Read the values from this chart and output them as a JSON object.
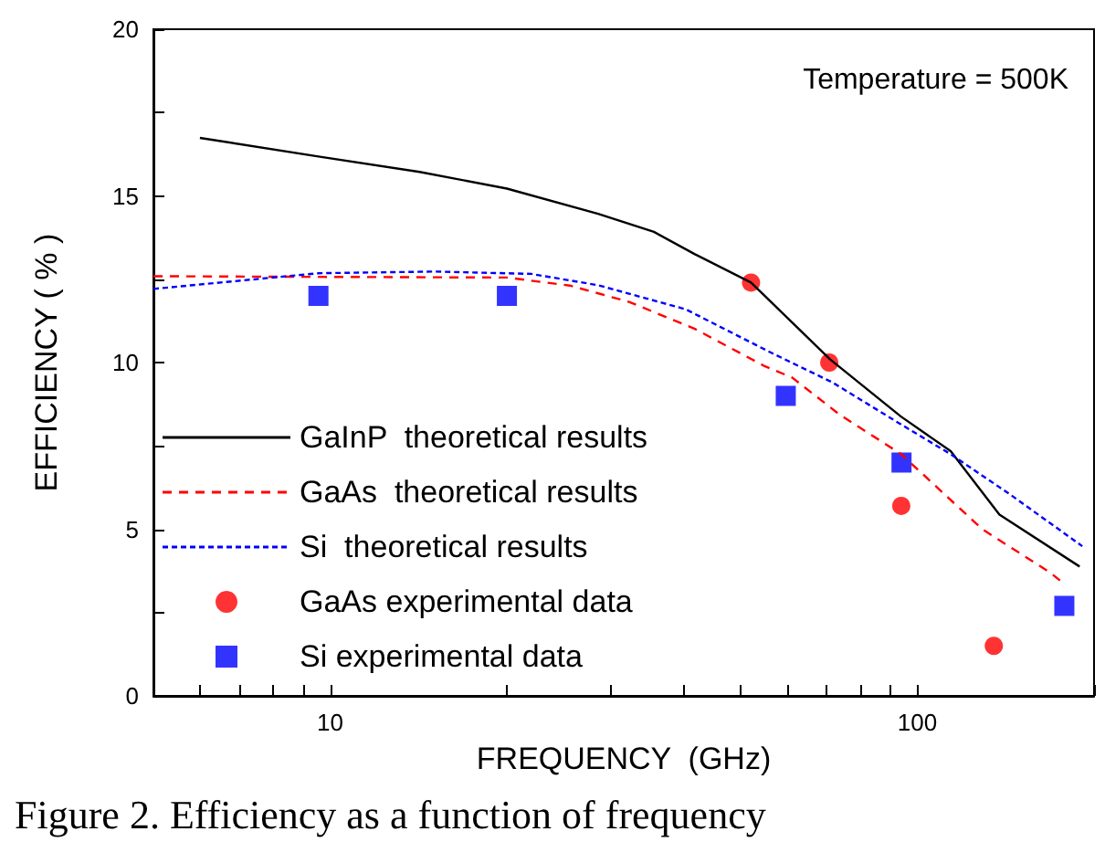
{
  "chart_data": {
    "type": "line",
    "xlabel": "FREQUENCY  (GHz)",
    "ylabel": "EFFICIENCY ( % )",
    "log": "x",
    "xlim": [
      5,
      200
    ],
    "xticks": [
      {
        "value": 6,
        "label": null
      },
      {
        "value": 7,
        "label": null
      },
      {
        "value": 8,
        "label": null
      },
      {
        "value": 9,
        "label": null
      },
      10,
      {
        "value": 20,
        "label": null
      },
      {
        "value": 30,
        "label": null
      },
      {
        "value": 40,
        "label": null
      },
      {
        "value": 50,
        "label": null
      },
      {
        "value": 60,
        "label": null
      },
      {
        "value": 70,
        "label": null
      },
      {
        "value": 80,
        "label": null
      },
      {
        "value": 90,
        "label": null
      },
      100,
      {
        "value": 200,
        "label": null
      }
    ],
    "ylim": [
      0,
      20
    ],
    "yticks": [
      0,
      {
        "value": 2.5,
        "label": null
      },
      5,
      {
        "value": 7.5,
        "label": null
      },
      10,
      {
        "value": 12.5,
        "label": null
      },
      15,
      {
        "value": 17.5,
        "label": null
      },
      20
    ],
    "grid": false,
    "legend": "bottom left",
    "annotations": [
      "Temperature = 500K",
      "Figure 2. Efficiency as a function of frequency"
    ],
    "series": [
      {
        "name": "GaInP  theoretical results",
        "color": "#000000",
        "line_style": "solid",
        "marker": "none",
        "x": [
          6,
          9.55,
          14.2,
          20,
          28.6,
          35.6,
          41.8,
          52.1,
          71,
          93.8,
          114,
          138,
          189
        ],
        "values": [
          16.74,
          16.18,
          15.72,
          15.22,
          14.46,
          13.92,
          13.25,
          12.4,
          10.1,
          8.38,
          7.34,
          5.44,
          3.88
        ]
      },
      {
        "name": "GaAs  theoretical results",
        "color": "#ff0000",
        "line_style": "dashed",
        "marker": "none",
        "x": [
          5,
          20,
          25.6,
          32.3,
          41.8,
          54.7,
          61.2,
          73.6,
          93.9,
          129,
          168,
          178
        ],
        "values": [
          12.59,
          12.55,
          12.31,
          11.82,
          11.01,
          9.91,
          9.55,
          8.45,
          7.25,
          5.0,
          3.71,
          3.36
        ]
      },
      {
        "name": "Si  theoretical results",
        "color": "#0000ff",
        "line_style": "dotted",
        "marker": "none",
        "x": [
          5,
          9.55,
          15.1,
          22,
          28.6,
          40.3,
          56.6,
          71.6,
          92.7,
          114,
          144,
          191
        ],
        "values": [
          12.21,
          12.68,
          12.73,
          12.66,
          12.32,
          11.6,
          10.28,
          9.41,
          8.2,
          7.25,
          6.04,
          4.49
        ]
      },
      {
        "name": "GaAs experimental data",
        "type": "scatter",
        "color": "#ff0000",
        "marker": "circle",
        "x": [
          52.1,
          70.8,
          93.9,
          135
        ],
        "values": [
          12.4,
          10.0,
          5.7,
          1.5
        ]
      },
      {
        "name": "Si experimental data",
        "type": "scatter",
        "color": "#0000ff",
        "marker": "square",
        "x": [
          9.55,
          20,
          59.7,
          94,
          178
        ],
        "values": [
          12.0,
          12.0,
          9.0,
          7.0,
          2.7
        ]
      }
    ]
  }
}
